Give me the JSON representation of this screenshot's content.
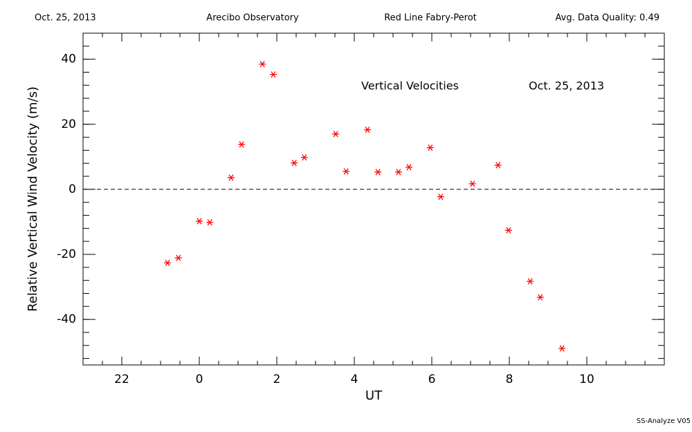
{
  "chart_data": {
    "type": "scatter",
    "header": [
      "Oct. 25, 2013",
      "Arecibo Observatory",
      "Red Line Fabry-Perot",
      "Avg. Data Quality: 0.49"
    ],
    "annotations": [
      "Vertical Velocities",
      "Oct. 25, 2013"
    ],
    "footer": "SS-Analyze V05",
    "xlabel": "UT",
    "ylabel": "Relative Vertical Wind Velocity (m/s)",
    "xlim": [
      -3,
      12
    ],
    "ylim": [
      -54,
      48
    ],
    "xticks": [
      {
        "value": -2,
        "label": "22"
      },
      0,
      2,
      4,
      6,
      8,
      10
    ],
    "yticks": [
      -40,
      -20,
      0,
      20,
      40
    ],
    "x_minor_step": 0.5,
    "y_minor_step": 4,
    "reference_line": 0,
    "color": "#ff0000",
    "x": [
      -0.82,
      -0.54,
      0,
      0.27,
      0.82,
      1.09,
      1.63,
      1.91,
      2.45,
      2.71,
      3.52,
      3.79,
      4.34,
      4.61,
      5.14,
      5.41,
      5.96,
      6.23,
      7.05,
      7.71,
      7.98,
      8.54,
      8.8,
      9.36
    ],
    "values": [
      -22.6,
      -21.1,
      -9.8,
      -10.2,
      3.6,
      13.8,
      38.5,
      35.3,
      8.1,
      9.8,
      17.0,
      5.5,
      18.3,
      5.3,
      5.3,
      6.8,
      12.8,
      -2.3,
      1.7,
      7.4,
      -12.6,
      -28.3,
      -33.2,
      -48.9
    ]
  }
}
